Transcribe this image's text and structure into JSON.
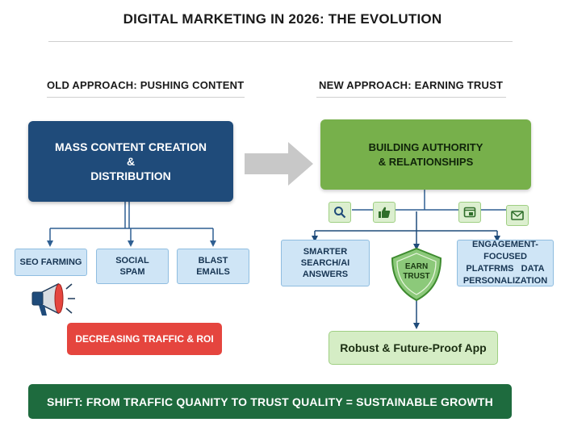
{
  "title": "DIGITAL MARKETING IN 2026: THE EVOLUTION",
  "left": {
    "heading": "OLD APPROACH: PUSHING CONTENT",
    "main_box": {
      "line1": "MASS CONTENT CREATION",
      "line2": "&",
      "line3": "DISTRIBUTION"
    },
    "tactics": [
      {
        "line1": "SEO FARMING",
        "line2": ""
      },
      {
        "line1": "SOCIAL",
        "line2": "SPAM"
      },
      {
        "line1": "BLAST",
        "line2": "EMAILS"
      }
    ],
    "result": "DECREASING TRAFFIC & ROI",
    "icon": "megaphone-icon"
  },
  "right": {
    "heading": "NEW APPROACH: EARNING TRUST",
    "main_box": {
      "line1": "BUILDING AUTHORITY",
      "line2": "& RELATIONSHIPS"
    },
    "icons": [
      "search-icon",
      "thumbs-up-icon",
      "app-window-icon",
      "mail-icon"
    ],
    "left_box": {
      "line1": "SMARTER",
      "line2": "SEARCH/AI",
      "line3": "ANSWERS"
    },
    "shield": {
      "line1": "EARN",
      "line2": "TRUST"
    },
    "right_box": {
      "line1": "ENGAGEMENT-FOCUSED",
      "line2": "PLATFRMS   DATA",
      "line3": "PERSONALIZATION"
    },
    "result": "Robust & Future-Proof App"
  },
  "banner": "SHIFT: FROM TRAFFIC QUANITY TO TRUST QUALITY = SUSTAINABLE GROWTH",
  "colors": {
    "old_main": "#1f4b7a",
    "new_main": "#77b04b",
    "light_blue": "#cfe5f6",
    "light_green": "#d5edc5",
    "red": "#e5453e",
    "banner": "#1e6b3e",
    "arrow_gray": "#c8c8c8"
  }
}
